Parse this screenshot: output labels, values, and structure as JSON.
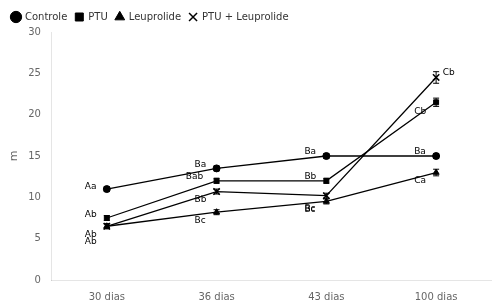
{
  "chart_data": {
    "type": "line",
    "categories": [
      "30 dias",
      "36 dias",
      "43 dias",
      "100 dias"
    ],
    "series": [
      {
        "name": "Controle",
        "values": [
          11.0,
          13.5,
          15.0,
          15.0
        ],
        "errors": [
          0.3,
          0.3,
          0.3,
          0.3
        ],
        "marker": "circle",
        "annotations": [
          "Aa",
          "Ba",
          "Ba",
          "Ba"
        ]
      },
      {
        "name": "PTU",
        "values": [
          7.5,
          12.0,
          12.0,
          21.5
        ],
        "errors": [
          0.3,
          0.3,
          0.3,
          0.5
        ],
        "marker": "square",
        "annotations": [
          "Ab",
          "Bab",
          "Bb",
          "Cb"
        ]
      },
      {
        "name": "Leuprolide",
        "values": [
          6.5,
          8.2,
          9.5,
          13.0
        ],
        "errors": [
          0.3,
          0.3,
          0.3,
          0.4
        ],
        "marker": "triangle",
        "annotations": [
          "Ab",
          "Bc",
          "Bc",
          "Ca"
        ]
      },
      {
        "name": "PTU + Leuprolide",
        "values": [
          6.5,
          10.7,
          10.2,
          24.5
        ],
        "errors": [
          0.3,
          0.3,
          0.3,
          0.7
        ],
        "marker": "x",
        "annotations": [
          "Ab",
          "Bb",
          "Bc",
          "Cb"
        ]
      }
    ],
    "color": "#000000",
    "ylim": [
      0,
      30
    ],
    "yticks": [
      0,
      5,
      10,
      15,
      20,
      25,
      30
    ],
    "ylabel": "m",
    "grid": false,
    "legend": "upper left"
  }
}
